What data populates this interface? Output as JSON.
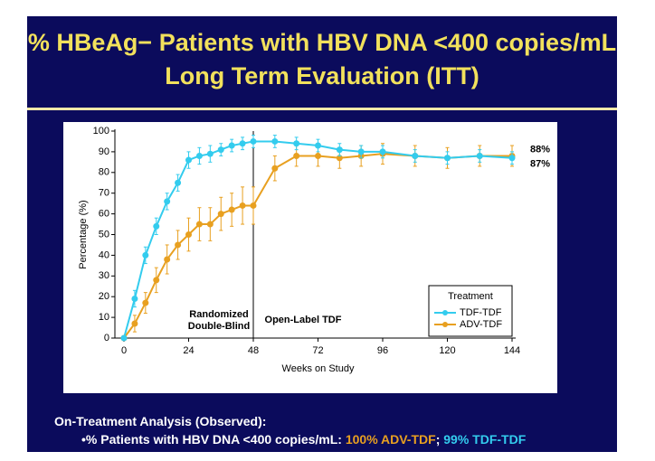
{
  "chart_data": {
    "type": "line",
    "title": [
      "% HBeAg− Patients with HBV DNA <400 copies/mL",
      "Long Term Evaluation (ITT)"
    ],
    "x_label": "Weeks on Study",
    "y_label": "Percentage (%)",
    "x": [
      0,
      4,
      8,
      12,
      16,
      20,
      24,
      28,
      32,
      36,
      40,
      44,
      48,
      56,
      64,
      72,
      80,
      88,
      96,
      108,
      120,
      132,
      144
    ],
    "series": [
      {
        "name": "TDF-TDF",
        "color": "#33ccee",
        "values": [
          0,
          19,
          40,
          54,
          66,
          75,
          86,
          88,
          89,
          91,
          93,
          94,
          95,
          95,
          94,
          93,
          91,
          90,
          90,
          88,
          87,
          88,
          87
        ],
        "errors": [
          0,
          4,
          4,
          4,
          4,
          4,
          4,
          4,
          4,
          3,
          3,
          3,
          3,
          3,
          3,
          3,
          3,
          3,
          3,
          3,
          3,
          3,
          3
        ],
        "value_labels": [
          null,
          null,
          null,
          null,
          null,
          null,
          null,
          null,
          null,
          null,
          null,
          null,
          null,
          null,
          null,
          null,
          null,
          null,
          null,
          null,
          null,
          null,
          "87%"
        ]
      },
      {
        "name": "ADV-TDF",
        "color": "#e8a020",
        "values": [
          0,
          7,
          17,
          28,
          38,
          45,
          50,
          55,
          55,
          60,
          62,
          64,
          64,
          82,
          88,
          88,
          87,
          88,
          89,
          88,
          87,
          88,
          88
        ],
        "errors": [
          0,
          4,
          5,
          6,
          7,
          7,
          8,
          8,
          8,
          8,
          8,
          9,
          9,
          6,
          5,
          5,
          5,
          5,
          5,
          5,
          5,
          5,
          5
        ],
        "value_labels": [
          null,
          null,
          null,
          null,
          null,
          null,
          null,
          null,
          null,
          null,
          null,
          null,
          null,
          null,
          null,
          null,
          null,
          null,
          null,
          null,
          null,
          null,
          "88%"
        ]
      }
    ],
    "xlim": [
      0,
      144
    ],
    "xticks": [
      0,
      24,
      48,
      72,
      96,
      120,
      144
    ],
    "ylim": [
      0,
      100
    ],
    "yticks": [
      0,
      10,
      20,
      30,
      40,
      50,
      60,
      70,
      80,
      90,
      100
    ],
    "divider_x": 48,
    "annotations": [
      "Randomized",
      "Double-Blind",
      "Open-Label TDF"
    ],
    "legend_title": "Treatment",
    "legend": "lower right"
  },
  "footer": {
    "heading": "On-Treatment Analysis (Observed):",
    "parts": [
      {
        "text": "•% Patients with HBV DNA <400 copies/mL: ",
        "color": "#ffffff"
      },
      {
        "text": "100% ADV-TDF",
        "color": "#e8a020"
      },
      {
        "text": "; ",
        "color": "#ffffff"
      },
      {
        "text": "99% TDF-TDF",
        "color": "#33ccee"
      }
    ]
  }
}
